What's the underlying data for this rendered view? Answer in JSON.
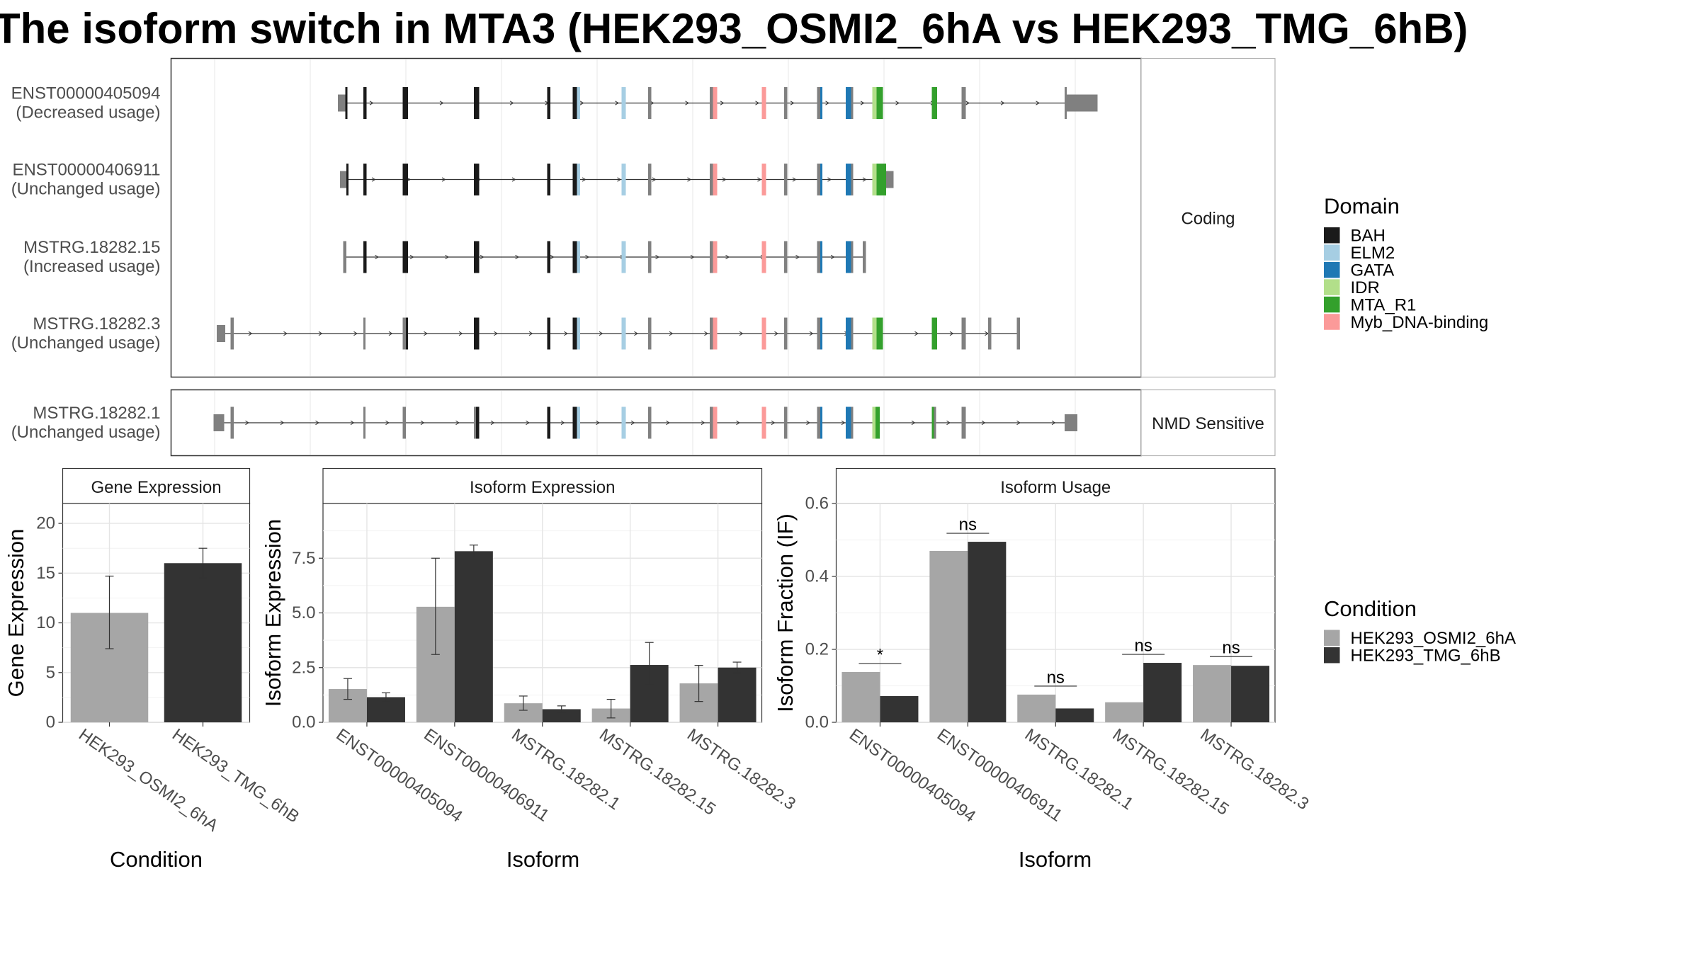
{
  "title": "The isoform switch in MTA3 (HEK293_OSMI2_6hA vs HEK293_TMG_6hB)",
  "colors": {
    "BAH": "#1a1a1a",
    "ELM2": "#a6cee3",
    "GATA": "#1f78b4",
    "IDR": "#b2df8a",
    "MTA_R1": "#33a02c",
    "Myb_DNA-binding": "#fb9a99",
    "exon": "#808080",
    "cond_a": "#a6a6a6",
    "cond_b": "#333333"
  },
  "legend_domain": {
    "title": "Domain",
    "items": [
      "BAH",
      "ELM2",
      "GATA",
      "IDR",
      "MTA_R1",
      "Myb_DNA-binding"
    ]
  },
  "legend_condition": {
    "title": "Condition",
    "items": [
      "HEK293_OSMI2_6hA",
      "HEK293_TMG_6hB"
    ]
  },
  "structure": {
    "facets": [
      "Coding",
      "NMD Sensitive"
    ],
    "transcripts": [
      {
        "id": "ENST00000405094",
        "usage": "(Decreased usage)",
        "facet": "Coding"
      },
      {
        "id": "ENST00000406911",
        "usage": "(Unchanged usage)",
        "facet": "Coding"
      },
      {
        "id": "MSTRG.18282.15",
        "usage": "(Increased usage)",
        "facet": "Coding"
      },
      {
        "id": "MSTRG.18282.3",
        "usage": "(Unchanged usage)",
        "facet": "Coding"
      },
      {
        "id": "MSTRG.18282.1",
        "usage": "(Unchanged usage)",
        "facet": "NMD Sensitive"
      }
    ]
  },
  "chart_data": [
    {
      "type": "bar",
      "title": "Gene Expression",
      "xlabel": "Condition",
      "ylabel": "Gene Expression",
      "categories": [
        "HEK293_OSMI2_6hA",
        "HEK293_TMG_6hB"
      ],
      "values": [
        11.0,
        16.0
      ],
      "errors": [
        [
          7.4,
          14.7
        ],
        [
          14.5,
          17.5
        ]
      ],
      "ylim": [
        0,
        22
      ],
      "yticks": [
        "0",
        "5",
        "10",
        "15",
        "20"
      ]
    },
    {
      "type": "bar",
      "title": "Isoform Expression",
      "xlabel": "Isoform",
      "ylabel": "Isoform Expression",
      "categories": [
        "ENST00000405094",
        "ENST00000406911",
        "MSTRG.18282.1",
        "MSTRG.18282.15",
        "MSTRG.18282.3"
      ],
      "series": [
        {
          "name": "HEK293_OSMI2_6hA",
          "values": [
            1.52,
            5.28,
            0.87,
            0.63,
            1.78
          ],
          "errors": [
            [
              1.05,
              2.0
            ],
            [
              3.1,
              7.5
            ],
            [
              0.55,
              1.2
            ],
            [
              0.2,
              1.05
            ],
            [
              0.95,
              2.6
            ]
          ]
        },
        {
          "name": "HEK293_TMG_6hB",
          "values": [
            1.15,
            7.82,
            0.6,
            2.62,
            2.5
          ],
          "errors": [
            [
              0.95,
              1.35
            ],
            [
              7.55,
              8.1
            ],
            [
              0.45,
              0.75
            ],
            [
              1.7,
              3.65
            ],
            [
              2.25,
              2.75
            ]
          ]
        }
      ],
      "ylim": [
        0,
        10
      ],
      "yticks": [
        "0.0",
        "2.5",
        "5.0",
        "7.5"
      ]
    },
    {
      "type": "bar",
      "title": "Isoform Usage",
      "xlabel": "Isoform",
      "ylabel": "Isoform Fraction (IF)",
      "categories": [
        "ENST00000405094",
        "ENST00000406911",
        "MSTRG.18282.1",
        "MSTRG.18282.15",
        "MSTRG.18282.3"
      ],
      "series": [
        {
          "name": "HEK293_OSMI2_6hA",
          "values": [
            0.138,
            0.47,
            0.076,
            0.055,
            0.157
          ]
        },
        {
          "name": "HEK293_TMG_6hB",
          "values": [
            0.072,
            0.495,
            0.038,
            0.163,
            0.155
          ]
        }
      ],
      "significance": [
        "*",
        "ns",
        "ns",
        "ns",
        "ns"
      ],
      "ylim": [
        0,
        0.6
      ],
      "yticks": [
        "0.0",
        "0.2",
        "0.4",
        "0.6"
      ]
    }
  ]
}
